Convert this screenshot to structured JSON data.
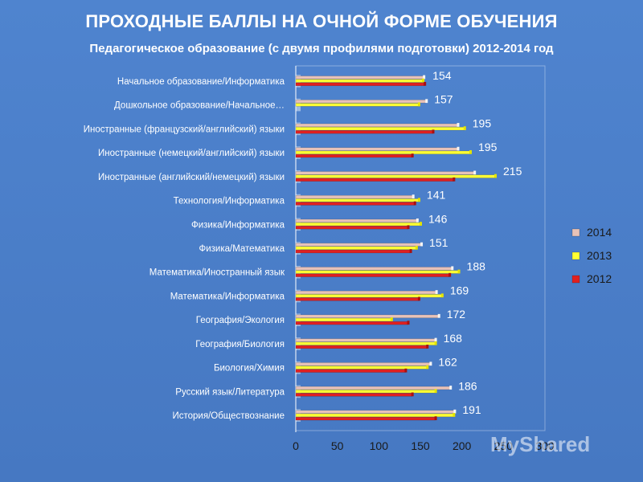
{
  "title": "ПРОХОДНЫЕ БАЛЛЫ НА ОЧНОЙ ФОРМЕ ОБУЧЕНИЯ",
  "subtitle": "Педагогическое образование (с двумя профилями подготовки) 2012-2014 год",
  "watermark": "MyShared",
  "colors": {
    "s2014": "#e8c2b8",
    "s2013": "#ffff33",
    "s2012": "#e02020",
    "text_dark": "#1a1a1a"
  },
  "chart_data": {
    "type": "bar",
    "orientation": "horizontal",
    "categories": [
      "Начальное образование/Информатика",
      "Дошкольное образование/Начальное…",
      "Иностранные (французский/английский) языки",
      "Иностранные (немецкий/английский) языки",
      "Иностранные (английский/немецкий) языки",
      "Технология/Информатика",
      "Физика/Информатика",
      "Физика/Математика",
      "Математика/Иностранный язык",
      "Математика/Информатика",
      "География/Экология",
      "География/Биология",
      "Биология/Химия",
      "Русский язык/Литература",
      "История/Обществознание"
    ],
    "series": [
      {
        "name": "2014",
        "values": [
          154,
          157,
          195,
          195,
          215,
          141,
          146,
          151,
          188,
          169,
          172,
          168,
          162,
          186,
          191
        ]
      },
      {
        "name": "2013",
        "values": [
          153,
          148,
          203,
          210,
          240,
          148,
          150,
          145,
          196,
          176,
          115,
          168,
          158,
          168,
          190
        ]
      },
      {
        "name": "2012",
        "values": [
          155,
          0,
          165,
          140,
          190,
          143,
          135,
          138,
          185,
          148,
          135,
          158,
          132,
          140,
          168
        ]
      }
    ],
    "data_labels": [
      "154",
      "157",
      "195",
      "195",
      "215",
      "141",
      "146",
      "151",
      "188",
      "169",
      "172",
      "168",
      "162",
      "186",
      "191"
    ],
    "xlim": [
      0,
      300
    ],
    "xticks": [
      "0",
      "50",
      "100",
      "150",
      "200",
      "250",
      "300"
    ],
    "grid": false,
    "legend": {
      "placement": "right",
      "entries": [
        "2014",
        "2013",
        "2012"
      ]
    }
  }
}
